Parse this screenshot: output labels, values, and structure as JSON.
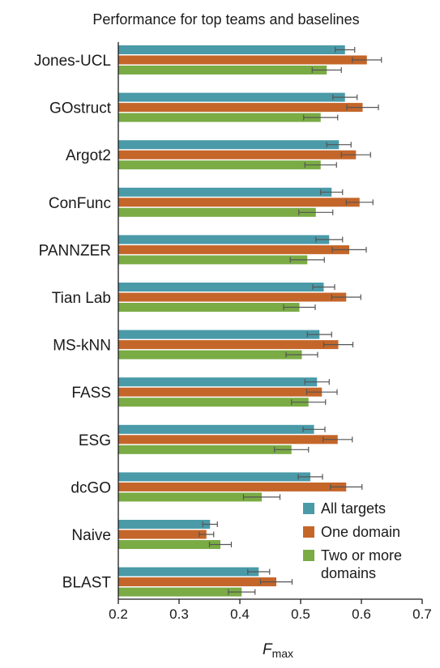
{
  "chart_data": {
    "type": "bar",
    "orientation": "horizontal",
    "title": "Performance for top teams and baselines",
    "xlabel": {
      "main": "F",
      "sub": "max"
    },
    "xlim": [
      0.2,
      0.7
    ],
    "xticks": [
      "0.2",
      "0.3",
      "0.4",
      "0.5",
      "0.6",
      "0.7"
    ],
    "grid": false,
    "legend_position": "bottom-right",
    "categories": [
      "Jones-UCL",
      "GOstruct",
      "Argot2",
      "ConFunc",
      "PANNZER",
      "Tian Lab",
      "MS-kNN",
      "FASS",
      "ESG",
      "dcGO",
      "Naive",
      "BLAST"
    ],
    "series": [
      {
        "name": "All targets",
        "color": "#4a9aa8",
        "values": [
          0.573,
          0.573,
          0.563,
          0.551,
          0.547,
          0.538,
          0.531,
          0.527,
          0.522,
          0.516,
          0.351,
          0.431
        ],
        "errors": [
          0.016,
          0.02,
          0.02,
          0.018,
          0.022,
          0.018,
          0.02,
          0.02,
          0.018,
          0.02,
          0.012,
          0.018
        ]
      },
      {
        "name": "One domain",
        "color": "#c4662a",
        "values": [
          0.609,
          0.602,
          0.591,
          0.597,
          0.58,
          0.575,
          0.562,
          0.535,
          0.561,
          0.575,
          0.345,
          0.46
        ],
        "errors": [
          0.024,
          0.026,
          0.024,
          0.022,
          0.028,
          0.024,
          0.024,
          0.025,
          0.024,
          0.026,
          0.012,
          0.026
        ]
      },
      {
        "name": "Two or more domains",
        "color": "#7aab45",
        "values": [
          0.543,
          0.533,
          0.533,
          0.525,
          0.511,
          0.498,
          0.502,
          0.513,
          0.485,
          0.436,
          0.368,
          0.403
        ],
        "errors": [
          0.024,
          0.028,
          0.026,
          0.028,
          0.028,
          0.026,
          0.026,
          0.028,
          0.028,
          0.03,
          0.018,
          0.022
        ]
      }
    ]
  }
}
